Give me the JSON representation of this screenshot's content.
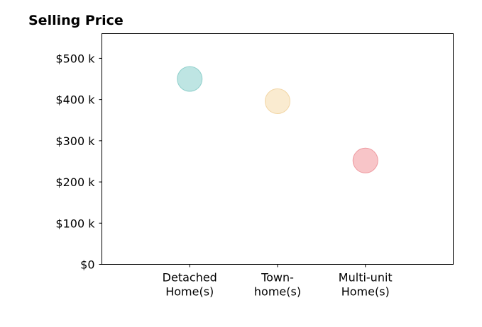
{
  "chart_data": {
    "type": "scatter",
    "title": "Selling Price",
    "xlabel": "",
    "ylabel": "",
    "categories": [
      [
        "Detached",
        "Home(s)"
      ],
      [
        "Town-",
        "home(s)"
      ],
      [
        "Multi-unit",
        "Home(s)"
      ]
    ],
    "values": [
      450000,
      396000,
      252000
    ],
    "point_colors": [
      "#a8dcd9",
      "#f8e4c0",
      "#f5b1b5"
    ],
    "point_edge_colors": [
      "#8fcfcb",
      "#f2d6a6",
      "#ee9aa0"
    ],
    "yticks": [
      0,
      100000,
      200000,
      300000,
      400000,
      500000
    ],
    "ytick_labels": [
      "$0",
      "$100 k",
      "$200 k",
      "$300 k",
      "$400 k",
      "$500 k"
    ],
    "ylim": [
      0,
      560000
    ],
    "xlim": [
      0,
      4
    ],
    "grid": false,
    "legend": "none"
  }
}
